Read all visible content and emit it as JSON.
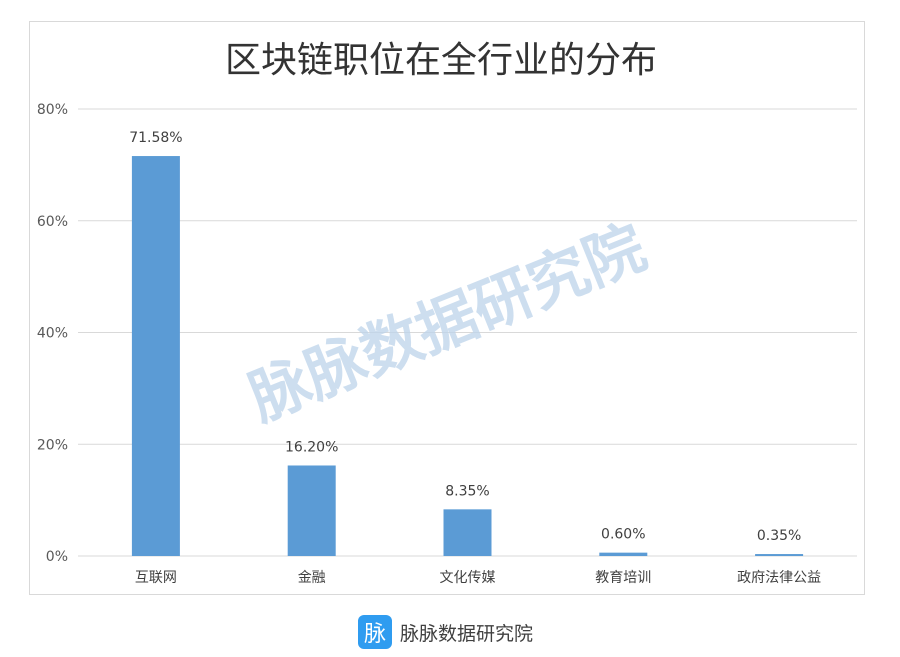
{
  "chart_data": {
    "type": "bar",
    "title": "区块链职位在全行业的分布",
    "categories": [
      "互联网",
      "金融",
      "文化传媒",
      "教育培训",
      "政府法律公益"
    ],
    "values": [
      71.58,
      16.2,
      8.35,
      0.6,
      0.35
    ],
    "data_labels": [
      "71.58%",
      "16.20%",
      "8.35%",
      "0.60%",
      "0.35%"
    ],
    "y_ticks": [
      0,
      20,
      40,
      60,
      80
    ],
    "y_tick_labels": [
      "0%",
      "20%",
      "40%",
      "60%",
      "80%"
    ],
    "ylim": [
      0,
      80
    ],
    "grid": true,
    "legend": "none",
    "bar_color": "#5b9bd5"
  },
  "watermark": "脉脉数据研究院",
  "footer": {
    "logo_char": "脉",
    "text": "脉脉数据研究院"
  }
}
